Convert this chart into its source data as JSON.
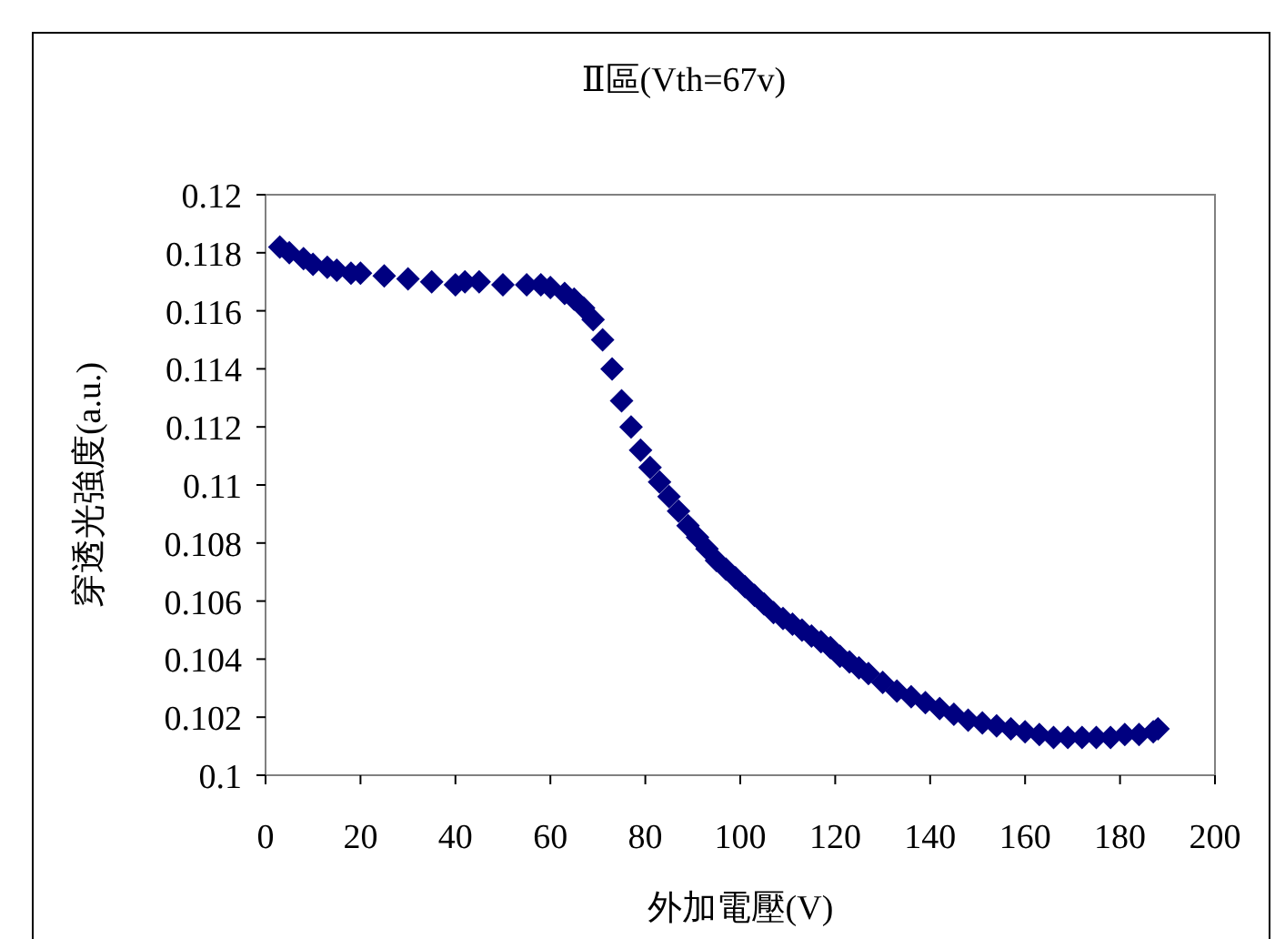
{
  "chart_data": {
    "type": "scatter",
    "title": "Ⅱ區(Vth=67v)",
    "xlabel": "外加電壓(V)",
    "ylabel": "穿透光強度(a.u.)",
    "xlim": [
      0,
      200
    ],
    "xticks": [
      0,
      20,
      40,
      60,
      80,
      100,
      120,
      140,
      160,
      180,
      200
    ],
    "ylim": [
      0.1,
      0.12
    ],
    "yticks": [
      0.1,
      0.102,
      0.104,
      0.106,
      0.108,
      0.11,
      0.112,
      0.114,
      0.116,
      0.118,
      0.12
    ],
    "grid": false,
    "marker": "diamond",
    "series": [
      {
        "color": "#000080",
        "x": [
          3,
          5,
          8,
          10,
          13,
          15,
          18,
          20,
          25,
          30,
          35,
          40,
          42,
          45,
          50,
          55,
          58,
          60,
          63,
          65,
          67,
          69,
          71,
          73,
          75,
          77,
          79,
          81,
          83,
          85,
          87,
          89,
          91,
          93,
          95,
          97,
          99,
          101,
          103,
          105,
          107,
          109,
          111,
          113,
          115,
          117,
          119,
          121,
          123,
          125,
          127,
          130,
          133,
          136,
          139,
          142,
          145,
          148,
          151,
          154,
          157,
          160,
          163,
          166,
          169,
          172,
          175,
          178,
          181,
          184,
          187,
          188
        ],
        "values": [
          0.1182,
          0.118,
          0.1178,
          0.1176,
          0.1175,
          0.1174,
          0.1173,
          0.1173,
          0.1172,
          0.1171,
          0.117,
          0.1169,
          0.117,
          0.117,
          0.1169,
          0.1169,
          0.1169,
          0.1168,
          0.1166,
          0.1164,
          0.1161,
          0.1157,
          0.115,
          0.114,
          0.1129,
          0.112,
          0.1112,
          0.1106,
          0.1101,
          0.1096,
          0.1091,
          0.1086,
          0.1082,
          0.1078,
          0.1074,
          0.1071,
          0.1068,
          0.1065,
          0.1062,
          0.1059,
          0.1056,
          0.1054,
          0.1052,
          0.105,
          0.1048,
          0.1046,
          0.1044,
          0.1041,
          0.1039,
          0.1037,
          0.1035,
          0.1032,
          0.1029,
          0.1027,
          0.1025,
          0.1023,
          0.1021,
          0.1019,
          0.1018,
          0.1017,
          0.1016,
          0.1015,
          0.1014,
          0.1013,
          0.1013,
          0.1013,
          0.1013,
          0.1013,
          0.1014,
          0.1014,
          0.1015,
          0.1016
        ]
      }
    ]
  }
}
